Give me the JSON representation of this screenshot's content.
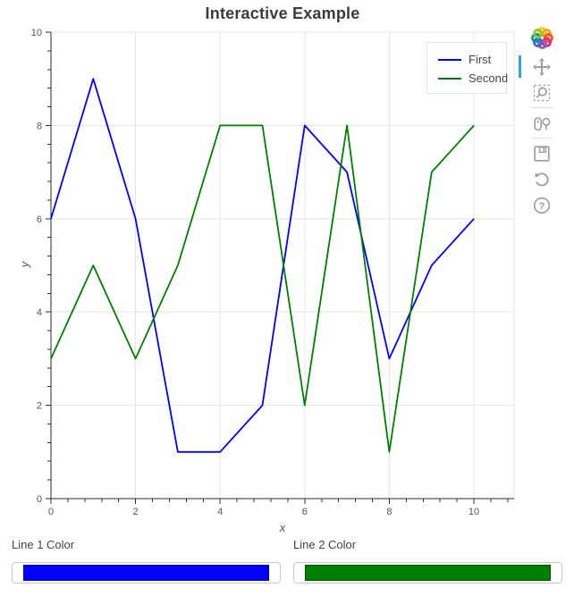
{
  "chart_data": {
    "type": "line",
    "title": "Interactive Example",
    "xlabel": "x",
    "ylabel": "y",
    "x": [
      0,
      1,
      2,
      3,
      4,
      5,
      6,
      7,
      8,
      9,
      10
    ],
    "series": [
      {
        "name": "First",
        "color": "#0000ff",
        "values": [
          6,
          9,
          6,
          1,
          1,
          2,
          8,
          7,
          3,
          5,
          6
        ]
      },
      {
        "name": "Second",
        "color": "#008000",
        "values": [
          3,
          5,
          3,
          5,
          8,
          8,
          2,
          8,
          1,
          7,
          8
        ]
      }
    ],
    "xlim": [
      0,
      10.95
    ],
    "ylim": [
      0,
      10
    ],
    "x_major_ticks": [
      0,
      2,
      4,
      6,
      8,
      10
    ],
    "y_major_ticks": [
      0,
      2,
      4,
      6,
      8,
      10
    ],
    "minor_tick_interval": 0.4,
    "grid": true,
    "legend_position": "top_right"
  },
  "toolbar": {
    "tools": [
      {
        "name": "pan",
        "active": true
      },
      {
        "name": "box-zoom",
        "active": false
      },
      {
        "name": "wheel-zoom",
        "active": false
      },
      {
        "name": "save",
        "active": false
      },
      {
        "name": "reset",
        "active": false
      },
      {
        "name": "help",
        "active": false
      }
    ],
    "logo_colors": [
      "#ffd200",
      "#f9a11b",
      "#f05a28",
      "#e91e8c",
      "#9b59b6",
      "#4861c5",
      "#0095b6",
      "#8dc63f"
    ]
  },
  "widgets": {
    "line1": {
      "label": "Line 1 Color",
      "value": "#0000ff"
    },
    "line2": {
      "label": "Line 2 Color",
      "value": "#008000"
    }
  },
  "colors": {
    "active_tool_accent": "#26aae1",
    "grid": "#e5e5e5",
    "axis": "#2e2e2e",
    "tick_label": "#555555",
    "icon_gray": "#9c9c9c"
  }
}
